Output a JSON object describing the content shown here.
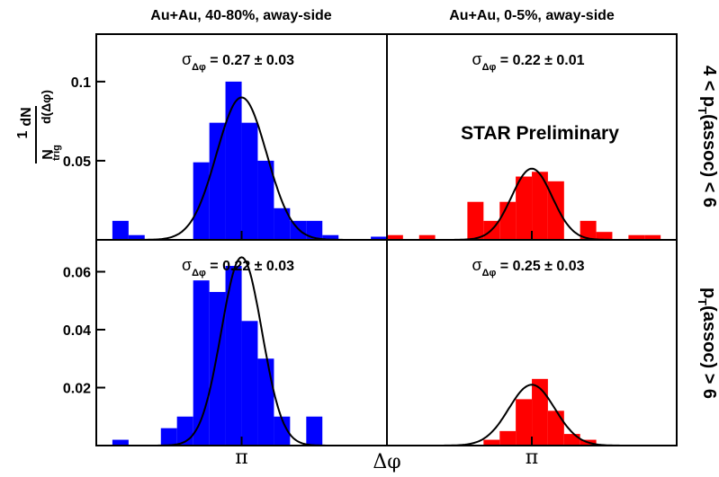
{
  "column_titles": [
    "Au+Au, 40-80%, away-side",
    "Au+Au, 0-5%, away-side"
  ],
  "row_labels": [
    {
      "pre": "4 < p",
      "sub": "T",
      "post": "(assoc) < 6"
    },
    {
      "pre": "p",
      "sub": "T",
      "post": "(assoc) > 6"
    }
  ],
  "x_label": "Δφ",
  "y_label": {
    "one": "1",
    "num": "dN",
    "n": "N",
    "trig": "trig",
    "den": "d(Δφ)"
  },
  "watermark": "STAR Preliminary",
  "chart_data": [
    {
      "type": "histogram",
      "color": "#0000ff",
      "annotation": {
        "sigma": "σ",
        "sub": "Δφ",
        "text": " = 0.27 ± 0.03"
      },
      "bins": [
        1.571,
        1.745,
        1.92,
        2.094,
        2.269,
        2.443,
        2.618,
        2.793,
        2.967,
        3.142,
        3.316,
        3.491,
        3.665,
        3.84,
        4.014,
        4.189,
        4.363,
        4.538,
        4.712
      ],
      "values": [
        0,
        0.012,
        0.003,
        0,
        0,
        0,
        0.049,
        0.074,
        0.1,
        0.074,
        0.05,
        0.02,
        0.012,
        0.012,
        0.003,
        0,
        0,
        0.002
      ],
      "fit": {
        "amplitude": 0.09,
        "mean": 3.1416,
        "sigma": 0.27
      },
      "xlim": [
        1.571,
        4.712
      ],
      "xticks": [
        {
          "value": 3.1416,
          "label": "π"
        }
      ],
      "ylim": [
        0,
        0.13
      ],
      "yticks": [
        0.05,
        0.1
      ]
    },
    {
      "type": "histogram",
      "color": "#ff0000",
      "annotation": {
        "sigma": "σ",
        "sub": "Δφ",
        "text": " = 0.22 ± 0.01"
      },
      "bins": [
        1.571,
        1.745,
        1.92,
        2.094,
        2.269,
        2.443,
        2.618,
        2.793,
        2.967,
        3.142,
        3.316,
        3.491,
        3.665,
        3.84,
        4.014,
        4.189,
        4.363,
        4.538,
        4.712
      ],
      "values": [
        0.003,
        0,
        0.003,
        0,
        0,
        0.024,
        0.012,
        0.024,
        0.04,
        0.043,
        0.037,
        0,
        0.012,
        0.005,
        0,
        0.003,
        0.003,
        0
      ],
      "fit": {
        "amplitude": 0.045,
        "mean": 3.1416,
        "sigma": 0.22
      },
      "xlim": [
        1.571,
        4.712
      ],
      "xticks": [
        {
          "value": 3.1416,
          "label": "π"
        }
      ],
      "ylim": [
        0,
        0.13
      ]
    },
    {
      "type": "histogram",
      "color": "#0000ff",
      "annotation": {
        "sigma": "σ",
        "sub": "Δφ",
        "text": " = 0.22 ± 0.03"
      },
      "bins": [
        1.571,
        1.745,
        1.92,
        2.094,
        2.269,
        2.443,
        2.618,
        2.793,
        2.967,
        3.142,
        3.316,
        3.491,
        3.665,
        3.84,
        4.014,
        4.189,
        4.363,
        4.538,
        4.712
      ],
      "values": [
        0,
        0.002,
        0,
        0,
        0.006,
        0.01,
        0.057,
        0.053,
        0.062,
        0.043,
        0.03,
        0.01,
        0,
        0.01,
        0,
        0,
        0,
        0
      ],
      "fit": {
        "amplitude": 0.065,
        "mean": 3.1416,
        "sigma": 0.22
      },
      "xlim": [
        1.571,
        4.712
      ],
      "xticks": [
        {
          "value": 3.1416,
          "label": "π"
        }
      ],
      "ylim": [
        0,
        0.071
      ],
      "yticks": [
        0.02,
        0.04,
        0.06
      ]
    },
    {
      "type": "histogram",
      "color": "#ff0000",
      "annotation": {
        "sigma": "σ",
        "sub": "Δφ",
        "text": " = 0.25 ± 0.03"
      },
      "bins": [
        1.571,
        1.745,
        1.92,
        2.094,
        2.269,
        2.443,
        2.618,
        2.793,
        2.967,
        3.142,
        3.316,
        3.491,
        3.665,
        3.84,
        4.014,
        4.189,
        4.363,
        4.538,
        4.712
      ],
      "values": [
        0,
        0,
        0,
        0,
        0,
        0,
        0.002,
        0.005,
        0.016,
        0.023,
        0.012,
        0.004,
        0.002,
        0,
        0,
        0,
        0,
        0
      ],
      "fit": {
        "amplitude": 0.021,
        "mean": 3.1416,
        "sigma": 0.25
      },
      "xlim": [
        1.571,
        4.712
      ],
      "xticks": [
        {
          "value": 3.1416,
          "label": "π"
        }
      ],
      "ylim": [
        0,
        0.071
      ]
    }
  ]
}
